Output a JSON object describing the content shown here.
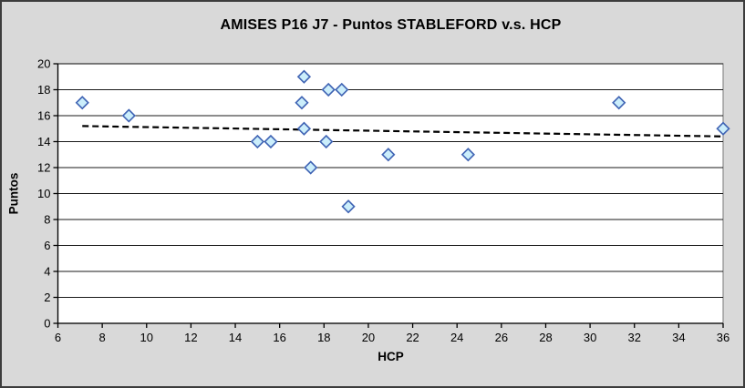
{
  "chart_data": {
    "type": "scatter",
    "title": "AMISES P16 J7 - Puntos STABLEFORD v.s. HCP",
    "xlabel": "HCP",
    "ylabel": "Puntos",
    "xlim": [
      6,
      36
    ],
    "ylim": [
      0,
      20
    ],
    "x_ticks": [
      6,
      8,
      10,
      12,
      14,
      16,
      18,
      20,
      22,
      24,
      26,
      28,
      30,
      32,
      34,
      36
    ],
    "y_ticks": [
      0,
      2,
      4,
      6,
      8,
      10,
      12,
      14,
      16,
      18,
      20
    ],
    "grid": "horizontal-major",
    "legend_position": "none",
    "series": [
      {
        "name": "Puntos STABLEFORD",
        "marker": "diamond",
        "points": [
          [
            7.1,
            17
          ],
          [
            9.2,
            16
          ],
          [
            15.0,
            14
          ],
          [
            15.6,
            14
          ],
          [
            17.0,
            17
          ],
          [
            17.1,
            19
          ],
          [
            17.1,
            15
          ],
          [
            17.4,
            12
          ],
          [
            18.1,
            14
          ],
          [
            18.2,
            18
          ],
          [
            18.8,
            18
          ],
          [
            19.1,
            9
          ],
          [
            20.9,
            13
          ],
          [
            24.5,
            13
          ],
          [
            31.3,
            17
          ],
          [
            36.0,
            15
          ]
        ]
      }
    ],
    "trendline": {
      "type": "linear",
      "style": "dashed",
      "x_start": 7.1,
      "y_start": 15.2,
      "x_end": 36.0,
      "y_end": 14.4
    },
    "colors": {
      "background": "#d9d9d9",
      "plot_background": "#ffffff",
      "gridline": "#1a1a1a",
      "axis": "#000000",
      "plot_border": "#8c8c8c",
      "marker_fill": "#cbeefb",
      "marker_stroke": "#4064b4",
      "trendline": "#000000",
      "text": "#000000",
      "frame_border": "#3c3c3c"
    }
  }
}
